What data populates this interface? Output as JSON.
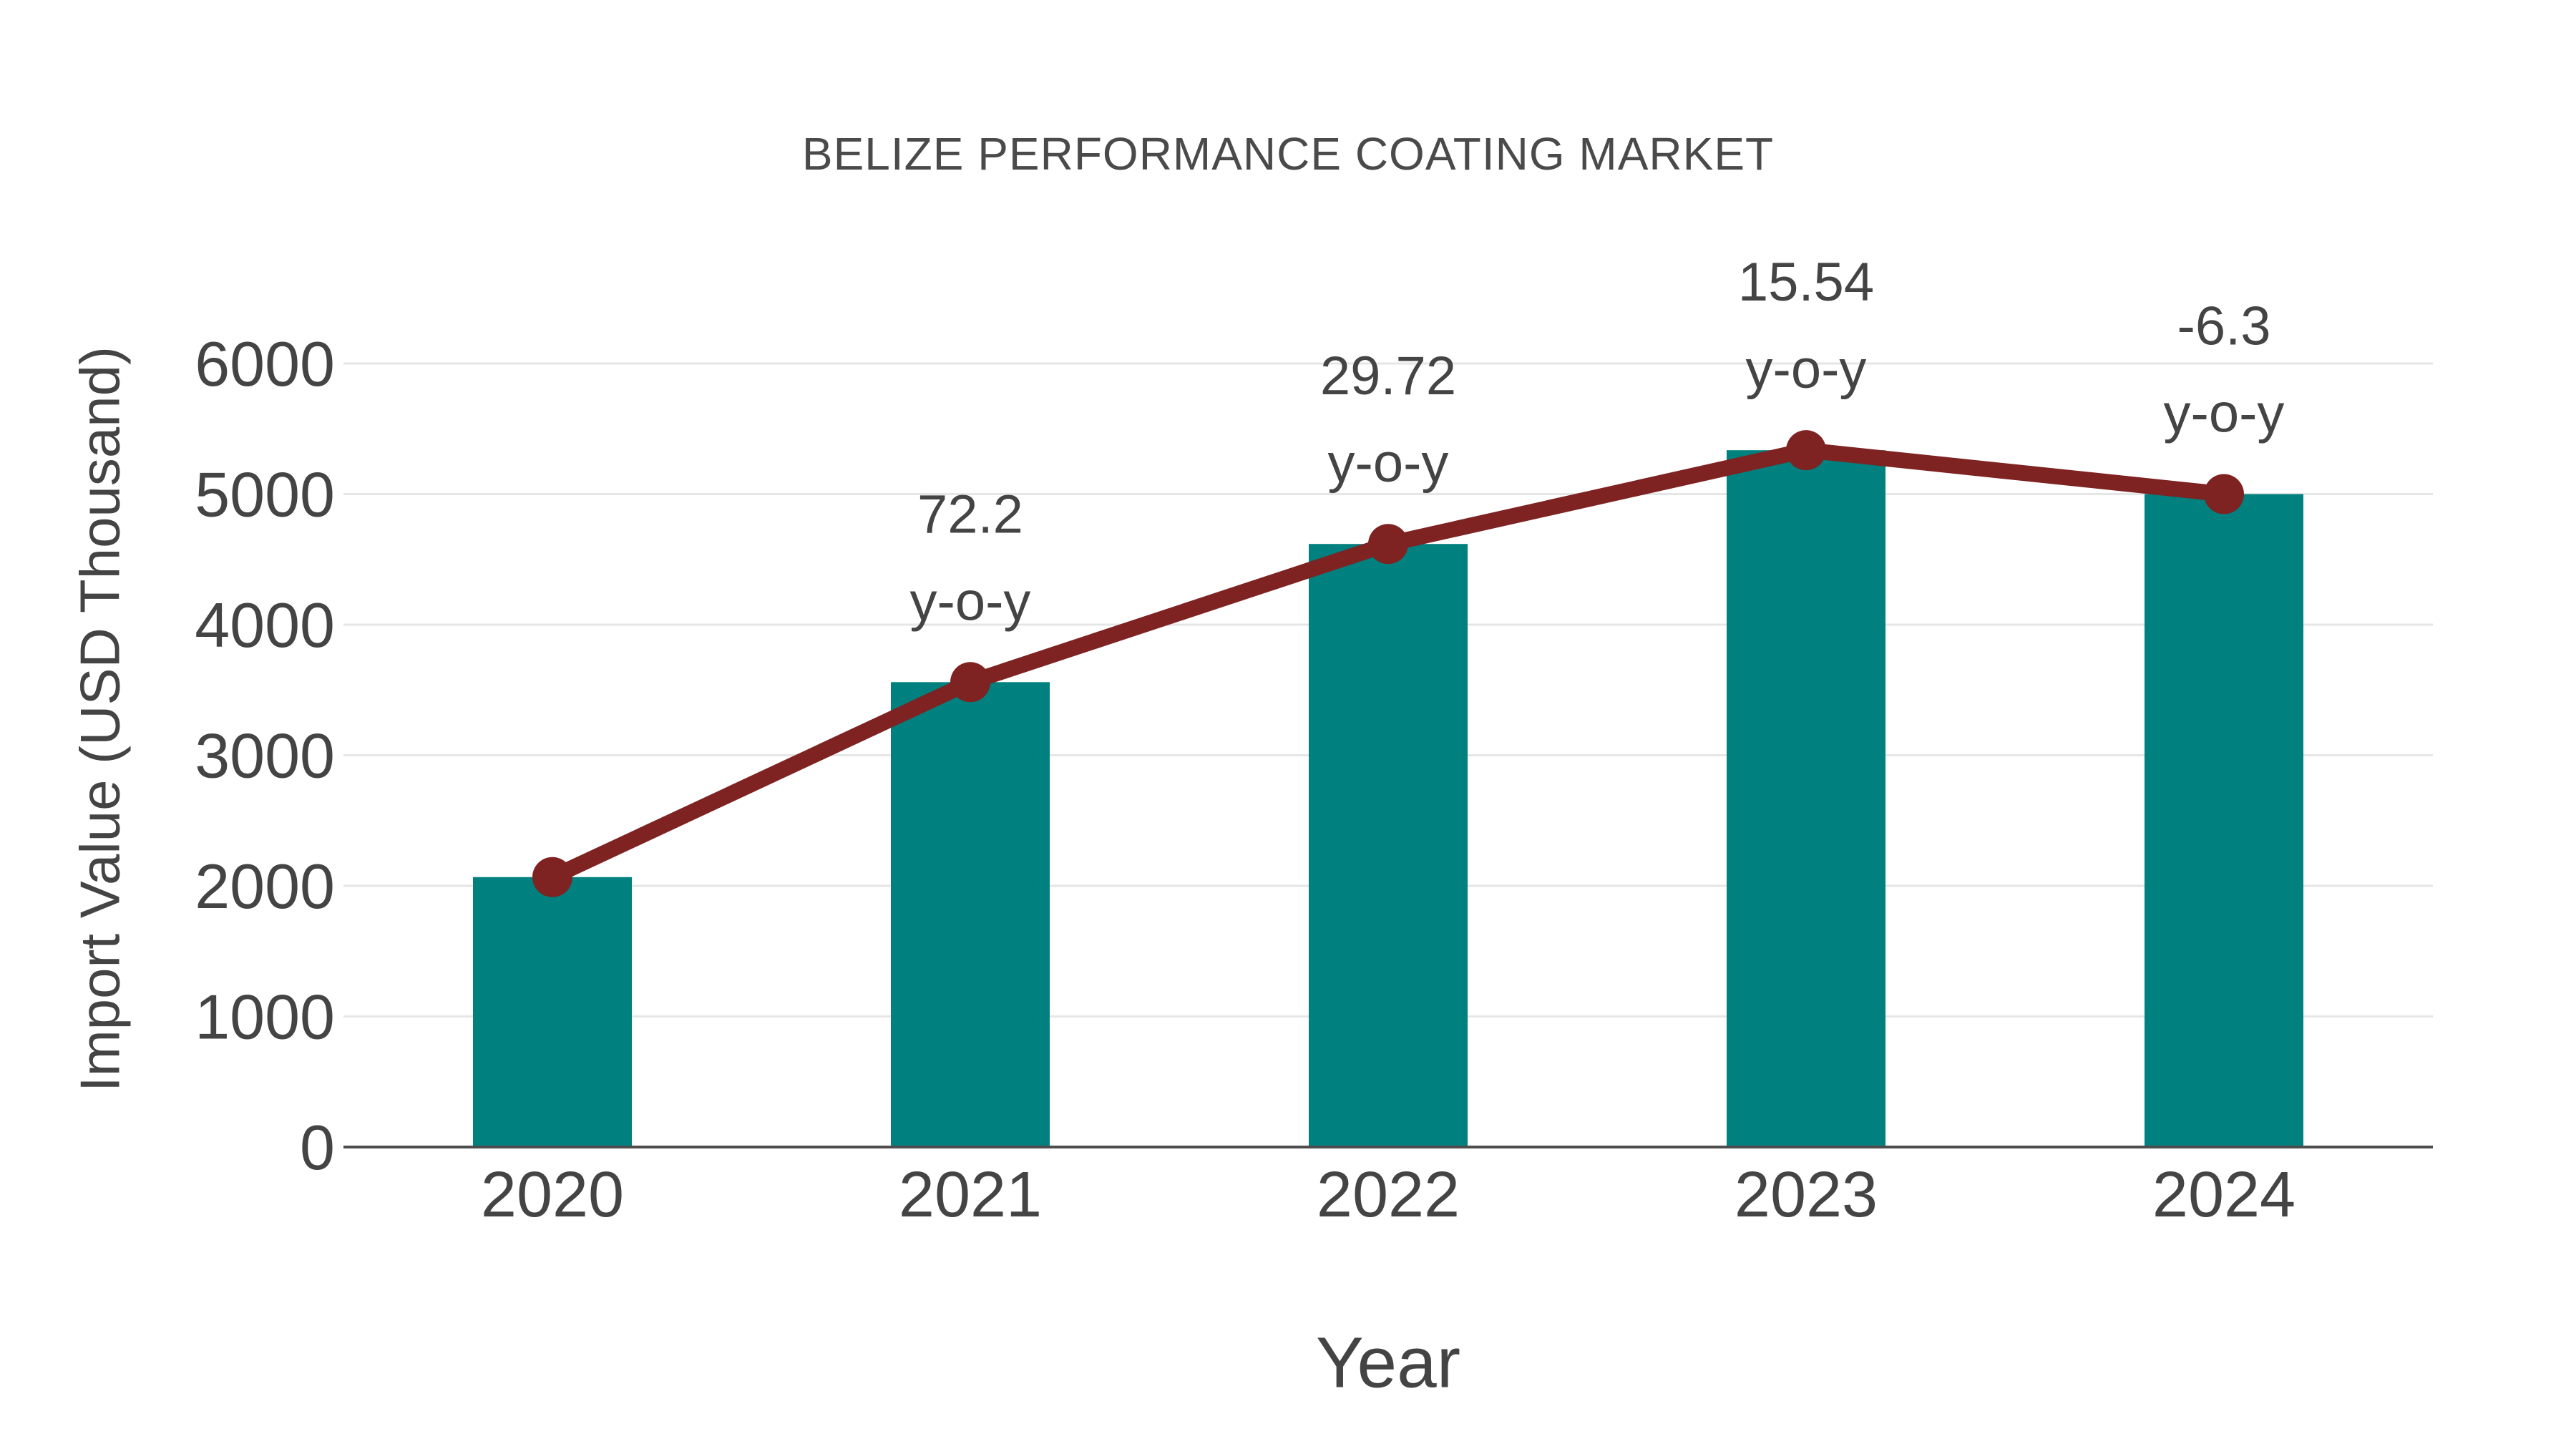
{
  "chart_data": {
    "type": "bar",
    "title": "BELIZE PERFORMANCE COATING MARKET",
    "xlabel": "Year",
    "ylabel": "Import Value (USD Thousand)",
    "categories": [
      "2020",
      "2021",
      "2022",
      "2023",
      "2024"
    ],
    "series": [
      {
        "name": "import-value-bars",
        "type": "bar",
        "values": [
          2067,
          3560,
          4618,
          5336,
          5000
        ]
      },
      {
        "name": "yoy-growth-line",
        "type": "line",
        "values": [
          2067,
          3560,
          4618,
          5336,
          5000
        ],
        "yoy_labels": [
          null,
          "72.2",
          "29.72",
          "15.54",
          "-6.3"
        ],
        "yoy_suffix": "y-o-y"
      }
    ],
    "ylim": [
      0,
      6000
    ],
    "ytick_step": 1000,
    "grid": true,
    "legend": "none",
    "colors": {
      "bar": "#00807E",
      "line": "#7E2222",
      "marker": "#7E2222",
      "gridline": "#e6e6e6",
      "axis_line": "#4d4d4d",
      "tick_text": "#444444",
      "annotation_text": "#444444",
      "title_text": "#4a4a4a",
      "background": "#ffffff"
    }
  }
}
